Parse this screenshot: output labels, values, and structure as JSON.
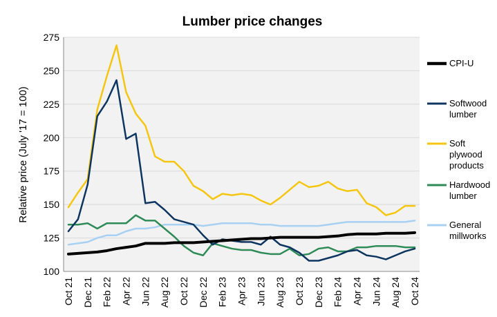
{
  "chart_data": {
    "type": "line",
    "title": "Lumber price changes",
    "xlabel": "",
    "ylabel": "Relative price (July '17 = 100)",
    "ylim": [
      100,
      275
    ],
    "yticks": [
      100,
      125,
      150,
      175,
      200,
      225,
      250,
      275
    ],
    "x": [
      "Oct 21",
      "Nov 21",
      "Dec 21",
      "Jan 22",
      "Feb 22",
      "Mar 22",
      "Apr 22",
      "May 22",
      "Jun 22",
      "Jul 22",
      "Aug 22",
      "Sep 22",
      "Oct 22",
      "Nov 22",
      "Dec 22",
      "Jan 23",
      "Feb 23",
      "Mar 23",
      "Apr 23",
      "May 23",
      "Jun 23",
      "Jul 23",
      "Aug 23",
      "Sep 23",
      "Oct 23",
      "Nov 23",
      "Dec 23",
      "Jan 24",
      "Feb 24",
      "Mar 24",
      "Apr 24",
      "May 24",
      "Jun 24",
      "Jul 24",
      "Aug 24",
      "Sep 24",
      "Oct 24"
    ],
    "xtick_labels": [
      "Oct 21",
      "Dec 21",
      "Feb 22",
      "Apr 22",
      "Jun 22",
      "Aug 22",
      "Oct 22",
      "Dec 22",
      "Feb 23",
      "Apr 23",
      "Jun 23",
      "Aug 23",
      "Oct 23",
      "Dec 23",
      "Feb 24",
      "Apr 24",
      "Jun 24",
      "Aug 24",
      "Oct 24"
    ],
    "plot_background": "#f2f2f2",
    "grid": "horizontal",
    "legend_position": "right",
    "series": [
      {
        "name": "CPI-U",
        "color": "#000000",
        "width": 4,
        "values": [
          113,
          113.5,
          114,
          114.5,
          115.5,
          117,
          118,
          119,
          121,
          121,
          121,
          121.5,
          121.5,
          121.5,
          122,
          122.5,
          123,
          123.5,
          124,
          124.5,
          124.5,
          125,
          125.5,
          125.5,
          125.5,
          125.5,
          125.5,
          126,
          126.5,
          127.5,
          128,
          128,
          128,
          128.5,
          128.5,
          128.5,
          129
        ]
      },
      {
        "name": "Softwood lumber",
        "color": "#0d3560",
        "width": 2.5,
        "values": [
          130,
          139,
          165,
          216,
          227,
          243,
          199,
          203,
          151,
          152,
          146,
          139,
          137,
          135,
          127,
          120,
          124,
          123,
          122,
          122,
          120,
          126,
          120,
          118,
          114,
          108,
          108,
          110,
          112,
          115,
          116,
          112,
          111,
          109,
          112,
          115,
          117
        ]
      },
      {
        "name": "Soft plywood products",
        "color": "#f5c60f",
        "width": 2.5,
        "values": [
          148,
          159,
          169,
          221,
          246,
          269,
          234,
          218,
          209,
          186,
          182,
          182,
          175,
          164,
          160,
          154,
          158,
          157,
          158,
          157,
          153,
          150,
          155,
          161,
          167,
          163,
          164,
          167,
          162,
          160,
          161,
          151,
          148,
          142,
          144,
          149,
          149
        ]
      },
      {
        "name": "Hardwood lumber",
        "color": "#2e8b57",
        "width": 2.5,
        "values": [
          135,
          135,
          136,
          132,
          136,
          136,
          136,
          142,
          138,
          138,
          132,
          126,
          119,
          114,
          112,
          121,
          119,
          117,
          116,
          116,
          114,
          113,
          113,
          117,
          112,
          113,
          117,
          118,
          115,
          115,
          118,
          118,
          119,
          119,
          119,
          118,
          118
        ]
      },
      {
        "name": "General millworks",
        "color": "#a7d0f2",
        "width": 2.5,
        "values": [
          120,
          121,
          122,
          125,
          127,
          127,
          130,
          132,
          132,
          133,
          135,
          135,
          135,
          135,
          134,
          135,
          136,
          136,
          136,
          136,
          135,
          135,
          134,
          134,
          134,
          134,
          134,
          135,
          136,
          137,
          137,
          137,
          137,
          137,
          137,
          137,
          138
        ]
      }
    ]
  }
}
